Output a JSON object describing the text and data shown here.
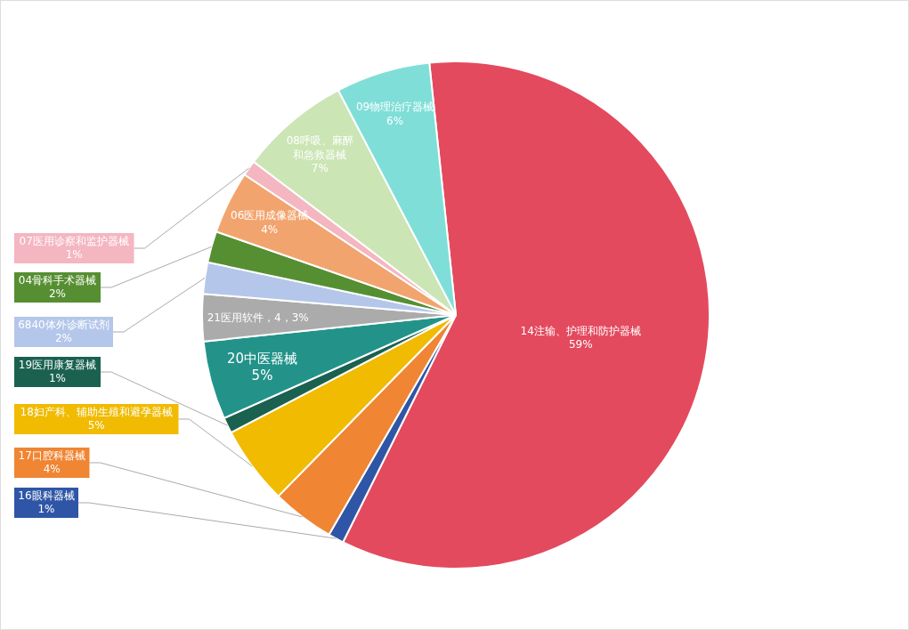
{
  "chart_data": {
    "type": "pie",
    "categories": [
      "14注输、护理和防护器械",
      "16眼科器械",
      "17口腔科器械",
      "18妇产科、辅助生殖和避孕器械",
      "19医用康复器械",
      "20中医器械",
      "21医用软件",
      "6840体外诊断试剂",
      "04骨科手术器械",
      "06医用成像器械",
      "07医用诊察和监护器械",
      "08呼吸、麻醉和急救器械",
      "09物理治疗器械"
    ],
    "values": [
      59,
      1,
      4,
      5,
      1,
      5,
      3,
      2,
      2,
      4,
      1,
      7,
      6
    ],
    "value_labels": [
      "59%",
      "1%",
      "4%",
      "5%",
      "1%",
      "5%",
      "，4，3%",
      "2%",
      "2%",
      "4%",
      "1%",
      "7%",
      "6%"
    ],
    "colors": [
      "#e34a5e",
      "#2f56a6",
      "#f08533",
      "#f0bb00",
      "#1a6150",
      "#23938a",
      "#ababab",
      "#b4c6ea",
      "#568f32",
      "#f2a46e",
      "#f4b6c0",
      "#cbe5b5",
      "#7fded8"
    ]
  }
}
